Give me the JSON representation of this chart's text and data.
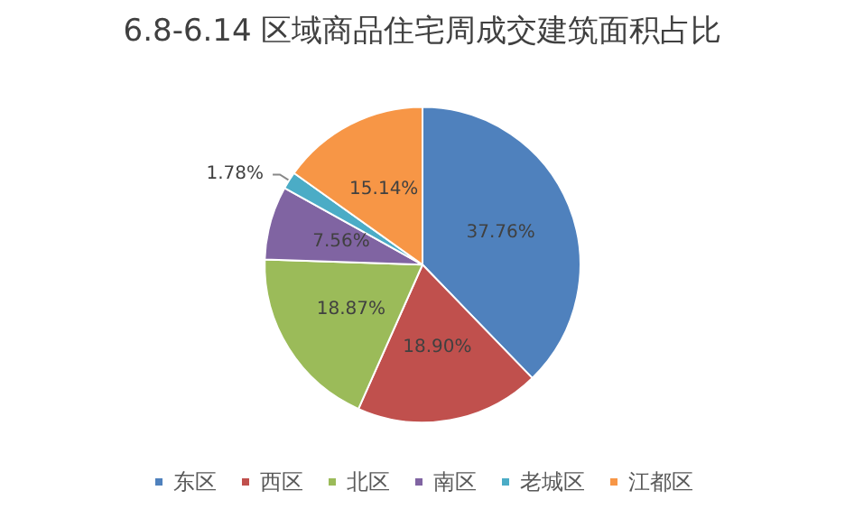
{
  "chart_data": {
    "type": "pie",
    "title": "6.8-6.14 区域商品住宅周成交建筑面积占比",
    "categories": [
      "东区",
      "西区",
      "北区",
      "南区",
      "老城区",
      "江都区"
    ],
    "values": [
      37.76,
      18.9,
      18.87,
      7.56,
      1.78,
      15.14
    ],
    "value_labels": [
      "37.76%",
      "18.90%",
      "18.87%",
      "7.56%",
      "1.78%",
      "15.14%"
    ],
    "colors": [
      "#4f81bd",
      "#c0504d",
      "#9bbb59",
      "#8064a2",
      "#4bacc6",
      "#f79646"
    ],
    "legend": "bottom"
  }
}
